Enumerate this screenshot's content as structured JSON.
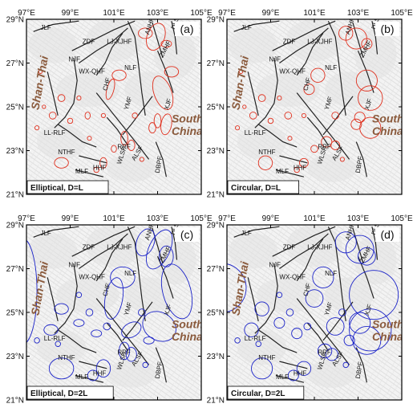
{
  "axes": {
    "lon_ticks": [
      "97°E",
      "99°E",
      "101°E",
      "103°E",
      "105°E"
    ],
    "lat_ticks": [
      "29°N",
      "27°N",
      "25°N",
      "23°N",
      "21°N"
    ]
  },
  "faults": [
    "JLF",
    "ZDF",
    "LJ-XJHF",
    "ANHF",
    "DLSF",
    "ZMHF",
    "NJF",
    "WX-QHF",
    "NLF",
    "CHF",
    "YMF",
    "XJF",
    "LL-RLF",
    "RRF",
    "NTHF",
    "WLSF",
    "ALSF",
    "HHF",
    "MLF",
    "DLF",
    "DBPF"
  ],
  "blocks": {
    "shan_thai": "Shan-Thai",
    "south_china_1": "South",
    "south_china_2": "China"
  },
  "colors": {
    "red": "#e0301e",
    "blue": "#1a22c8",
    "block_text": "#8a5a3c"
  },
  "panels": [
    {
      "label": "(a)",
      "caption": "Elliptical, D=L",
      "color": "red"
    },
    {
      "label": "(b)",
      "caption": "Circular, D=L",
      "color": "red"
    },
    {
      "label": "(c)",
      "caption": "Elliptical, D=2L",
      "color": "blue"
    },
    {
      "label": "(d)",
      "caption": "Circular, D=2L",
      "color": "blue"
    }
  ]
}
